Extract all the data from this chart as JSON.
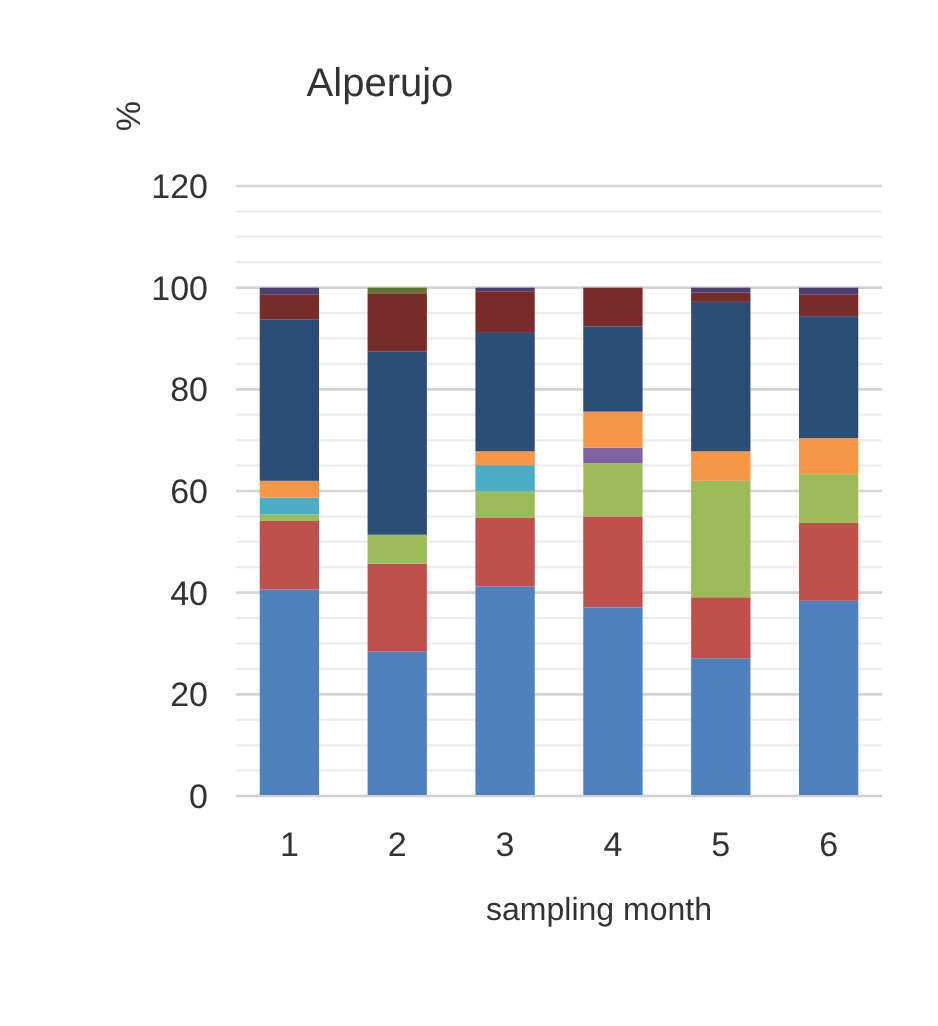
{
  "chart_data": {
    "type": "bar",
    "title": "Alperujo",
    "xlabel": "sampling month",
    "ylabel": "%",
    "categories": [
      "1",
      "2",
      "3",
      "4",
      "5",
      "6"
    ],
    "stacked": true,
    "grid": "y",
    "ylim": [
      0,
      120
    ],
    "yticks": [
      0,
      {
        "value": 5,
        "label": null
      },
      {
        "value": 10,
        "label": null
      },
      {
        "value": 15,
        "label": null
      },
      20,
      {
        "value": 25,
        "label": null
      },
      {
        "value": 30,
        "label": null
      },
      {
        "value": 35,
        "label": null
      },
      40,
      {
        "value": 45,
        "label": null
      },
      {
        "value": 50,
        "label": null
      },
      {
        "value": 55,
        "label": null
      },
      60,
      {
        "value": 65,
        "label": null
      },
      {
        "value": 70,
        "label": null
      },
      {
        "value": 75,
        "label": null
      },
      80,
      {
        "value": 85,
        "label": null
      },
      {
        "value": 90,
        "label": null
      },
      {
        "value": 95,
        "label": null
      },
      100,
      {
        "value": 105,
        "label": null
      },
      {
        "value": 110,
        "label": null
      },
      {
        "value": 115,
        "label": null
      },
      120
    ],
    "series": [
      {
        "color": "#4f81bd",
        "values": [
          40.6,
          28.4,
          41.2,
          37.1,
          27.1,
          38.4
        ]
      },
      {
        "color": "#c0504d",
        "values": [
          13.5,
          17.3,
          13.5,
          17.9,
          12,
          15.3
        ]
      },
      {
        "color": "#9bbb59",
        "values": [
          1.3,
          5.7,
          5.2,
          10.5,
          22.9,
          9.6
        ]
      },
      {
        "color": "#4bacc6",
        "values": [
          3.3,
          0,
          5.2,
          0,
          0,
          0
        ]
      },
      {
        "color": "#8064a2",
        "values": [
          0,
          0,
          0,
          3,
          0,
          0
        ]
      },
      {
        "color": "#f79646",
        "values": [
          3.3,
          0,
          2.7,
          7.1,
          5.8,
          7.1
        ]
      },
      {
        "color": "#2c4d75",
        "values": [
          31.7,
          36,
          23.3,
          16.8,
          29.4,
          24
        ]
      },
      {
        "color": "#772c2a",
        "values": [
          4.9,
          11.5,
          8.2,
          7.6,
          1.8,
          4.3
        ]
      },
      {
        "color": "#4b3f72",
        "values": [
          1.4,
          0,
          0.7,
          0,
          1,
          1.3
        ]
      },
      {
        "color": "#5f7530",
        "values": [
          0,
          1.1,
          0,
          0,
          0,
          0
        ]
      }
    ]
  }
}
